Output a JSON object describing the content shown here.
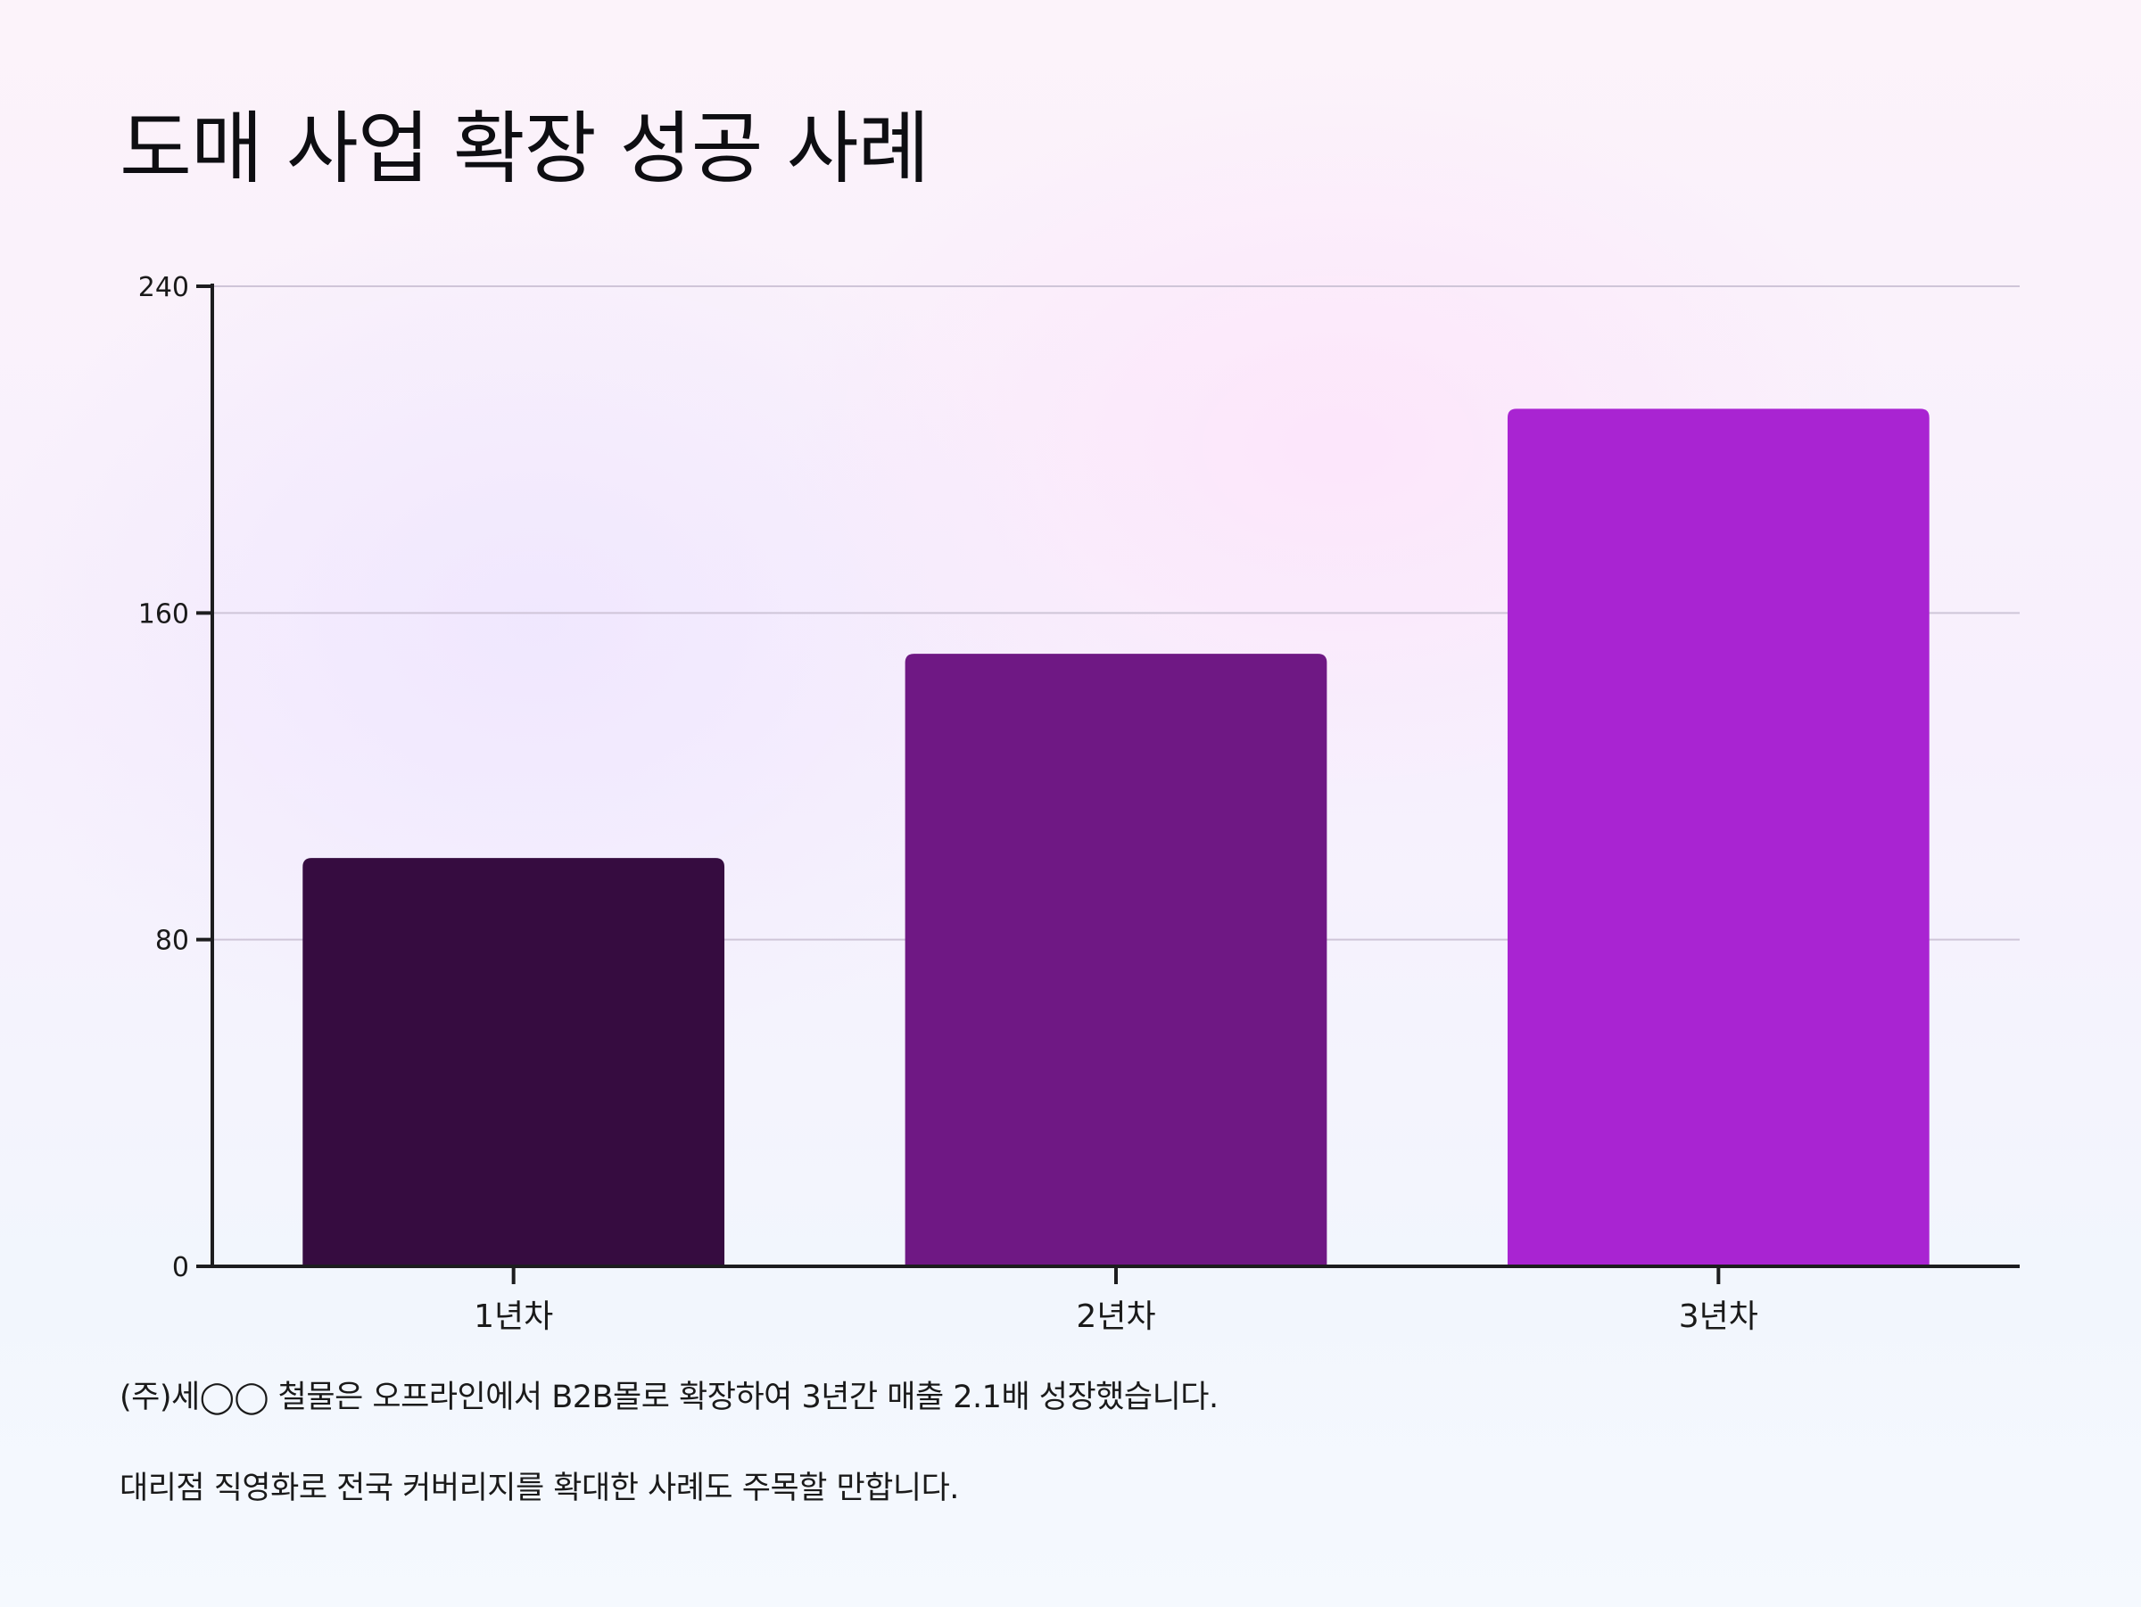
{
  "title": "도매 사업 확장 성공 사례",
  "chart_data": {
    "type": "bar",
    "title": "도매 사업 확장 성공 사례",
    "xlabel": "",
    "ylabel": "",
    "categories": [
      "1년차",
      "2년차",
      "3년차"
    ],
    "values": [
      100,
      150,
      210
    ],
    "ylim": [
      0,
      240
    ],
    "yticks": [
      0,
      80,
      160,
      240
    ],
    "grid": true,
    "legend": "none",
    "colors": [
      "#360c40",
      "#6f1884",
      "#a924d2"
    ]
  },
  "notes": [
    "(주)세◯◯ 철물은 오프라인에서 B2B몰로 확장하여 3년간 매출 2.1배 성장했습니다.",
    "대리점 직영화로 전국 커버리지를 확대한 사례도 주목할 만합니다."
  ]
}
